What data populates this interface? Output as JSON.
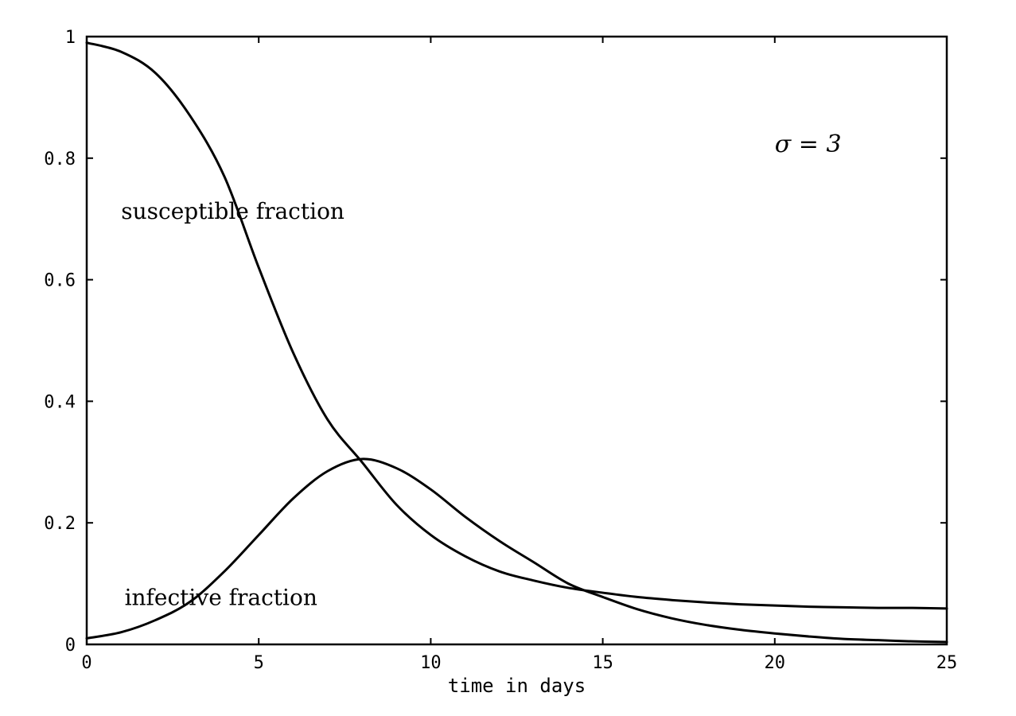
{
  "chart_data": {
    "type": "line",
    "xlabel": "time in days",
    "ylabel": "",
    "xlim": [
      0,
      25
    ],
    "ylim": [
      0,
      1
    ],
    "xticks": [
      0,
      5,
      10,
      15,
      20,
      25
    ],
    "yticks": [
      0,
      0.2,
      0.4,
      0.6,
      0.8,
      1
    ],
    "xtick_labels": [
      "0",
      "5",
      "10",
      "15",
      "20",
      "25"
    ],
    "ytick_labels": [
      "0",
      "0.2",
      "0.4",
      "0.6",
      "0.8",
      "1"
    ],
    "grid": false,
    "annotations": [
      {
        "key": "susceptible",
        "text": "susceptible fraction",
        "x": 1.0,
        "y": 0.7
      },
      {
        "key": "infective",
        "text": "infective fraction",
        "x": 1.1,
        "y": 0.065
      },
      {
        "key": "sigma",
        "text": "σ = 3",
        "x": 20.0,
        "y": 0.81
      }
    ],
    "series": [
      {
        "key": "susceptible",
        "x": [
          0,
          1,
          2,
          3,
          4,
          5,
          6,
          7,
          8,
          9,
          10,
          11,
          12,
          13,
          14,
          15,
          16,
          17,
          18,
          19,
          20,
          21,
          22,
          23,
          24,
          25
        ],
        "values": [
          0.99,
          0.975,
          0.94,
          0.87,
          0.77,
          0.62,
          0.48,
          0.37,
          0.3,
          0.23,
          0.18,
          0.145,
          0.12,
          0.105,
          0.093,
          0.085,
          0.078,
          0.073,
          0.069,
          0.066,
          0.064,
          0.062,
          0.061,
          0.06,
          0.06,
          0.059
        ]
      },
      {
        "key": "infective",
        "x": [
          0,
          1,
          2,
          3,
          4,
          5,
          6,
          7,
          8,
          9,
          10,
          11,
          12,
          13,
          14,
          15,
          16,
          17,
          18,
          19,
          20,
          21,
          22,
          23,
          24,
          25
        ],
        "values": [
          0.01,
          0.02,
          0.04,
          0.07,
          0.12,
          0.18,
          0.24,
          0.285,
          0.305,
          0.29,
          0.255,
          0.21,
          0.17,
          0.135,
          0.1,
          0.078,
          0.058,
          0.043,
          0.032,
          0.024,
          0.018,
          0.013,
          0.009,
          0.007,
          0.005,
          0.004
        ]
      }
    ]
  }
}
